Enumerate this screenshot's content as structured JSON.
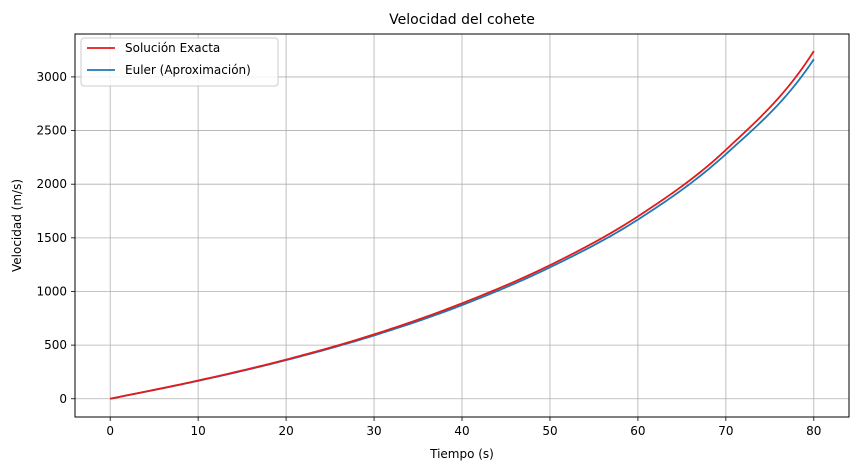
{
  "chart_data": {
    "type": "line",
    "title": "Velocidad del cohete",
    "xlabel": "Tiempo (s)",
    "ylabel": "Velocidad (m/s)",
    "xlim": [
      -4,
      84
    ],
    "ylim": [
      -170,
      3400
    ],
    "xticks": [
      0,
      10,
      20,
      30,
      40,
      50,
      60,
      70,
      80
    ],
    "yticks": [
      0,
      500,
      1000,
      1500,
      2000,
      2500,
      3000
    ],
    "grid": true,
    "legend_position": "upper-left",
    "x": [
      0,
      10,
      20,
      30,
      40,
      50,
      60,
      70,
      80
    ],
    "series": [
      {
        "name": "Solución Exacta",
        "color": "#e41a1c",
        "values": [
          0,
          170,
          365,
          600,
          890,
          1245,
          1700,
          2320,
          3240
        ]
      },
      {
        "name": "Euler (Aproximación)",
        "color": "#1f77b4",
        "values": [
          0,
          167,
          360,
          590,
          873,
          1225,
          1670,
          2280,
          3165
        ]
      }
    ]
  }
}
